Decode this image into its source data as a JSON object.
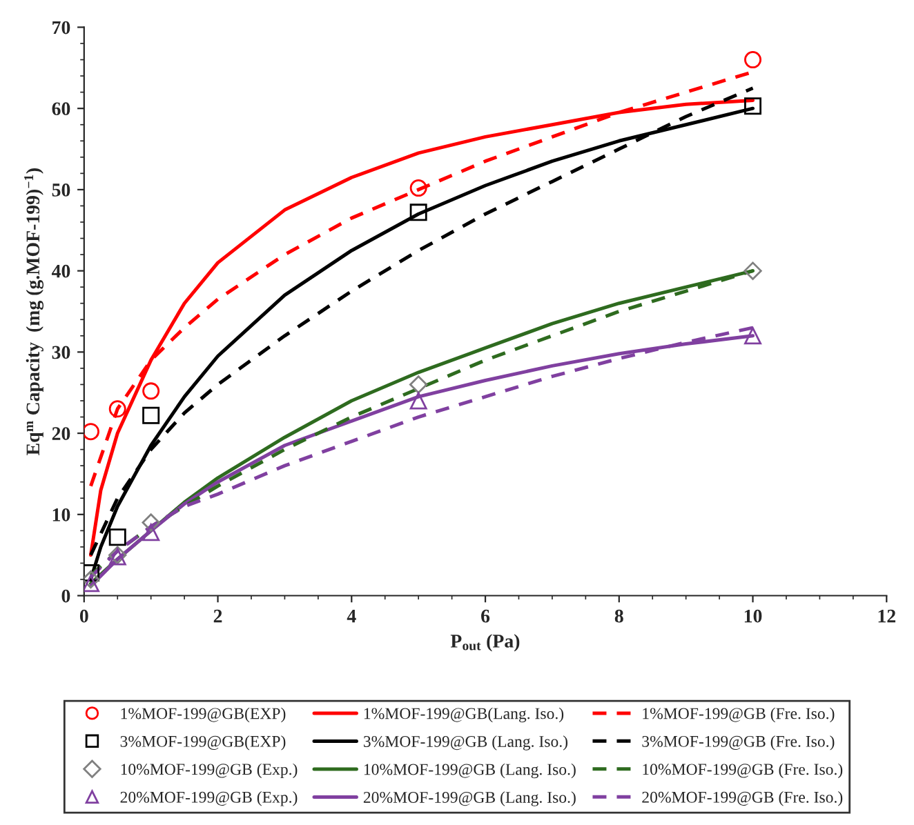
{
  "chart_data": {
    "type": "line",
    "xlabel": "P$_{out}$ (Pa)",
    "ylabel": "Eq$^{m}$ Capacity  (mg (g.MOF-199)$^{−1}$)",
    "xlim": [
      0,
      12
    ],
    "xticks": [
      0,
      2,
      4,
      6,
      8,
      10,
      12
    ],
    "ylim": [
      0,
      70
    ],
    "yticks": [
      0,
      10,
      20,
      30,
      40,
      50,
      60,
      70
    ],
    "grid": false,
    "legend": "bottom",
    "series": [
      {
        "name": "1%MOF-199@GB(EXP)",
        "type": "scatter",
        "marker": "circle",
        "color": "#ff0000",
        "x": [
          0.1,
          0.5,
          1,
          5,
          10
        ],
        "values": [
          20.2,
          23,
          25.2,
          50.2,
          66
        ]
      },
      {
        "name": "3%MOF-199@GB(EXP)",
        "type": "scatter",
        "marker": "square",
        "color": "#000000",
        "x": [
          0.1,
          0.5,
          1,
          5,
          10
        ],
        "values": [
          2.8,
          7.2,
          22.2,
          47.2,
          60.3
        ]
      },
      {
        "name": "10%MOF-199@GB (Exp.)",
        "type": "scatter",
        "marker": "diamond",
        "color": "#808080",
        "x": [
          0.1,
          0.5,
          1,
          5,
          10
        ],
        "values": [
          2,
          5,
          9,
          26,
          40
        ]
      },
      {
        "name": "20%MOF-199@GB (Exp.)",
        "type": "scatter",
        "marker": "triangle",
        "color": "#8040a0",
        "x": [
          0.1,
          0.5,
          1,
          5,
          10
        ],
        "values": [
          1.5,
          4.8,
          7.8,
          24,
          32
        ]
      },
      {
        "name": "1%MOF-199@GB(Lang. Iso.)",
        "line_style": "solid",
        "color": "#ff0000",
        "x": [
          0.1,
          0.25,
          0.5,
          1,
          1.5,
          2,
          3,
          4,
          5,
          6,
          7,
          8,
          9,
          10
        ],
        "values": [
          5,
          13,
          20,
          29,
          36,
          41,
          47.5,
          51.5,
          54.5,
          56.5,
          58,
          59.5,
          60.5,
          61
        ]
      },
      {
        "name": "3%MOF-199@GB (Lang. Iso.)",
        "line_style": "solid",
        "color": "#000000",
        "x": [
          0.1,
          0.25,
          0.5,
          1,
          1.5,
          2,
          3,
          4,
          5,
          6,
          7,
          8,
          9,
          10
        ],
        "values": [
          2,
          6,
          11,
          18.5,
          24.5,
          29.5,
          37,
          42.5,
          47,
          50.5,
          53.5,
          56,
          58,
          60
        ]
      },
      {
        "name": "10%MOF-199@GB (Lang. Iso.)",
        "line_style": "solid",
        "color": "#2e6b1f",
        "x": [
          0.1,
          0.5,
          1,
          1.5,
          2,
          3,
          4,
          5,
          6,
          7,
          8,
          9,
          10
        ],
        "values": [
          1.5,
          4.5,
          8,
          11.5,
          14.5,
          19.5,
          24,
          27.5,
          30.5,
          33.5,
          36,
          38,
          40
        ]
      },
      {
        "name": "20%MOF-199@GB (Lang. Iso.)",
        "line_style": "solid",
        "color": "#8040a0",
        "x": [
          0.1,
          0.5,
          1,
          1.5,
          2,
          3,
          4,
          5,
          6,
          7,
          8,
          9,
          10
        ],
        "values": [
          1.2,
          4.5,
          8,
          11.3,
          14,
          18.5,
          21.5,
          24.5,
          26.5,
          28.3,
          29.8,
          31,
          32
        ]
      },
      {
        "name": "1%MOF-199@GB (Fre. Iso.)",
        "line_style": "dashed",
        "color": "#ff0000",
        "x": [
          0.1,
          0.5,
          1,
          1.5,
          2,
          3,
          4,
          5,
          6,
          7,
          8,
          9,
          10
        ],
        "values": [
          13.5,
          23,
          29,
          33,
          36.5,
          42,
          46.5,
          50,
          53.5,
          56.5,
          59.5,
          62,
          64.5
        ]
      },
      {
        "name": "3%MOF-199@GB (Fre. Iso.)",
        "line_style": "dashed",
        "color": "#000000",
        "x": [
          0.1,
          0.5,
          1,
          1.5,
          2,
          3,
          4,
          5,
          6,
          7,
          8,
          9,
          10
        ],
        "values": [
          5,
          12,
          18,
          22.5,
          26,
          32,
          37.5,
          42.5,
          47,
          51,
          55,
          59,
          62.5
        ]
      },
      {
        "name": "10%MOF-199@GB (Fre. Iso.)",
        "line_style": "dashed",
        "color": "#2e6b1f",
        "x": [
          0.1,
          0.5,
          1,
          2,
          3,
          4,
          5,
          6,
          7,
          8,
          9,
          10
        ],
        "values": [
          2.5,
          5.5,
          8.5,
          13.5,
          18,
          22,
          25.5,
          29,
          32,
          35,
          37.5,
          40
        ]
      },
      {
        "name": "20%MOF-199@GB (Fre. Iso.)",
        "line_style": "dashed",
        "color": "#8040a0",
        "x": [
          0.1,
          0.5,
          1,
          1.5,
          2,
          3,
          4,
          5,
          6,
          7,
          8,
          9,
          10
        ],
        "values": [
          2.3,
          5.5,
          8.5,
          11,
          12.5,
          16,
          19,
          22,
          24.5,
          27,
          29.2,
          31.2,
          33
        ]
      }
    ]
  }
}
